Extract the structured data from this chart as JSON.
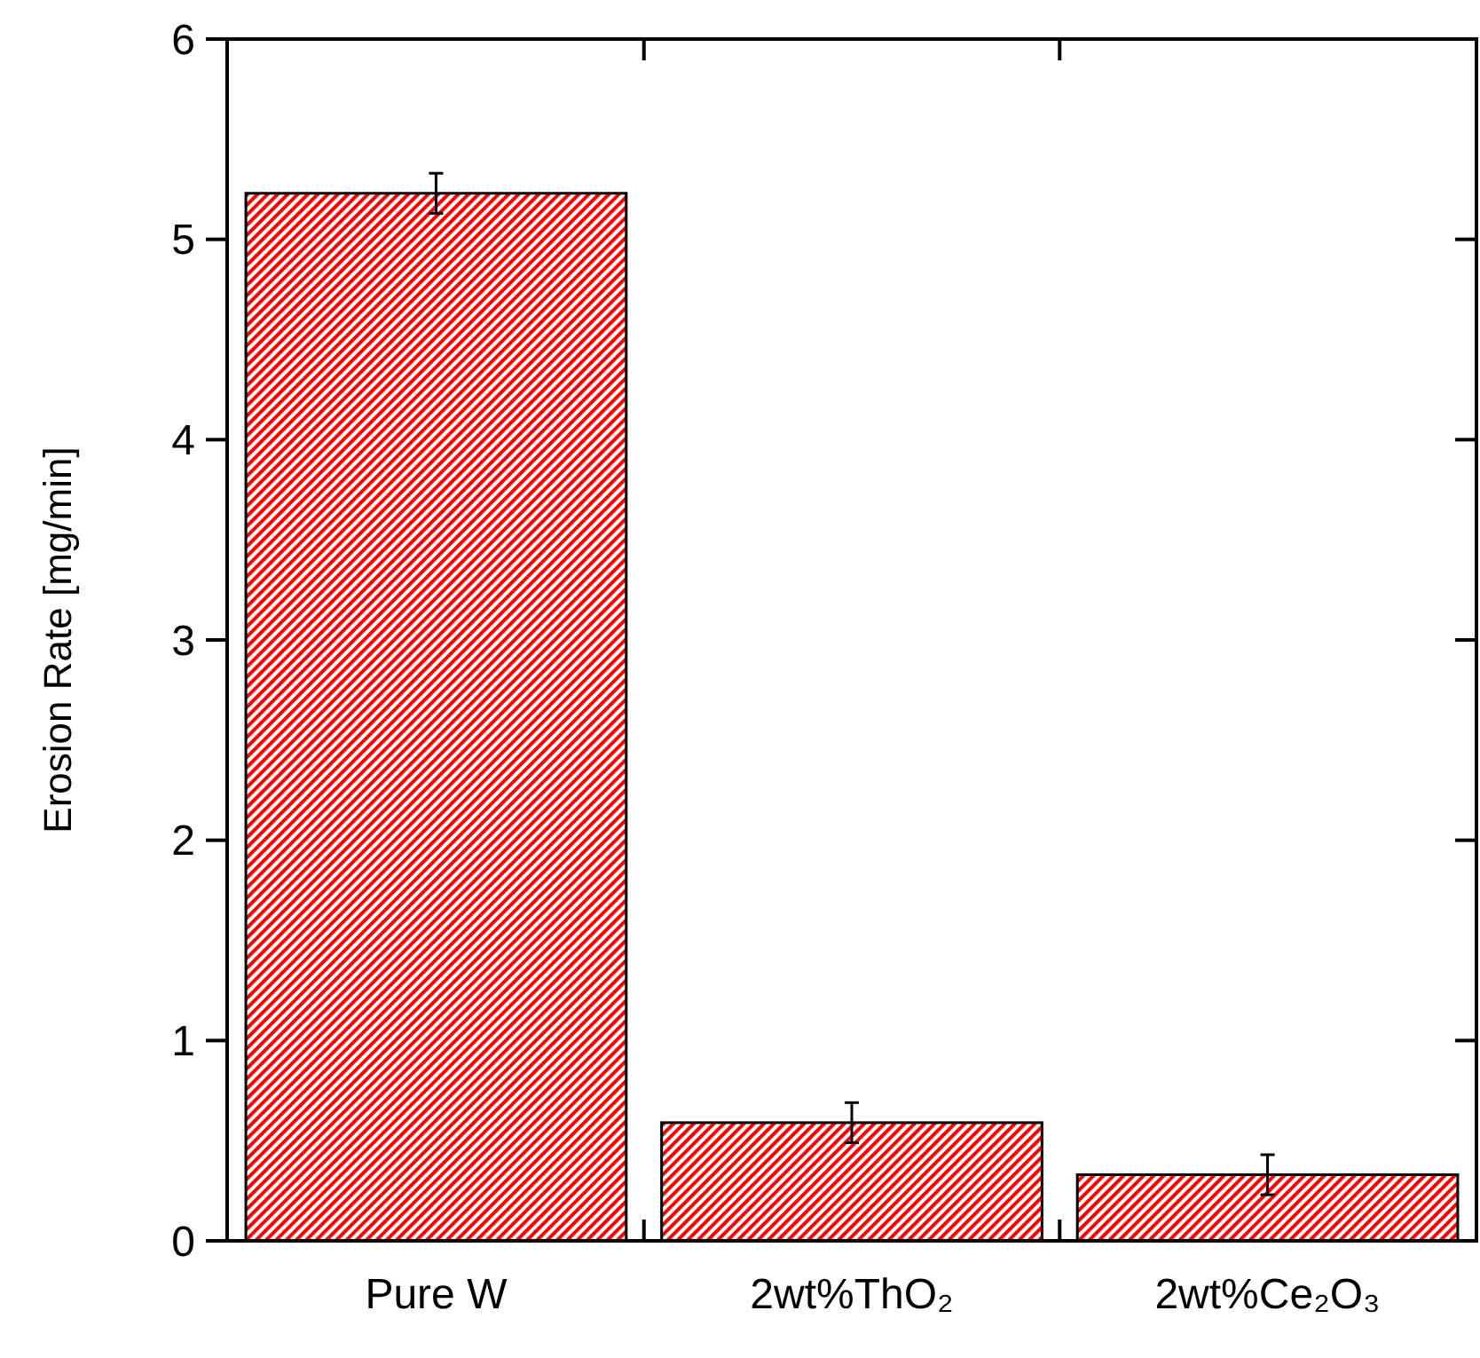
{
  "chart_data": {
    "type": "bar",
    "ylabel": "Erosion Rate [mg/min]",
    "categories": [
      "Pure W",
      "2wt%ThO₂",
      "2wt%Ce₂O₃"
    ],
    "values": [
      5.23,
      0.59,
      0.33
    ],
    "errors": [
      0.1,
      0.1,
      0.1
    ],
    "color": "#ff0000",
    "ylim": [
      0,
      6
    ],
    "yticks": [
      0,
      1,
      2,
      3,
      4,
      5,
      6
    ],
    "grid": false
  }
}
